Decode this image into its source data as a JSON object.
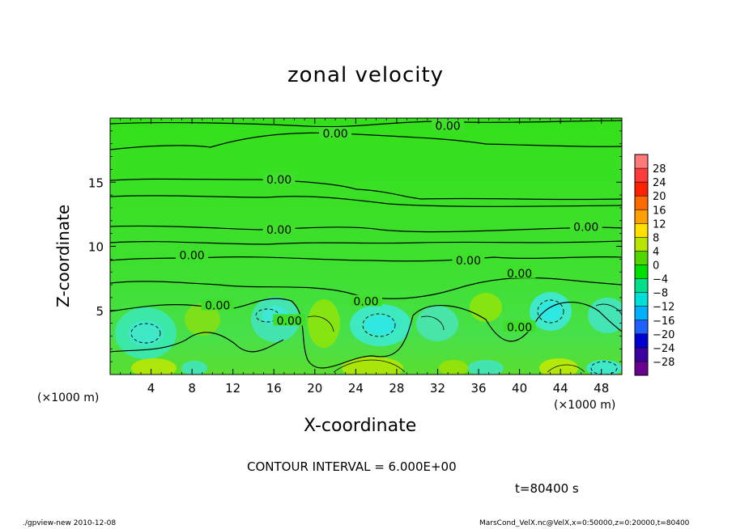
{
  "chart_data": {
    "type": "heatmap",
    "title": "zonal velocity",
    "xlabel": "X-coordinate",
    "ylabel": "Z-coordinate",
    "x_unit_label": "(×1000 m)",
    "x_ticks": [
      4,
      8,
      12,
      16,
      20,
      24,
      28,
      32,
      36,
      40,
      44,
      48
    ],
    "y_ticks": [
      5,
      10,
      15
    ],
    "xlim": [
      0,
      50
    ],
    "ylim": [
      0,
      20
    ],
    "contour_labels": [
      {
        "text": "0.00",
        "x": 33,
        "y": 19.4
      },
      {
        "text": "0.00",
        "x": 22,
        "y": 18.8
      },
      {
        "text": "0.00",
        "x": 16.5,
        "y": 15.2
      },
      {
        "text": "0.00",
        "x": 16.5,
        "y": 11.3
      },
      {
        "text": "0.00",
        "x": 46.5,
        "y": 11.5
      },
      {
        "text": "0.00",
        "x": 8,
        "y": 9.3
      },
      {
        "text": "0.00",
        "x": 35,
        "y": 8.9
      },
      {
        "text": "0.00",
        "x": 40,
        "y": 7.9
      },
      {
        "text": "0.00",
        "x": 25,
        "y": 5.7
      },
      {
        "text": "0.00",
        "x": 10.5,
        "y": 5.4
      },
      {
        "text": "0.00",
        "x": 17.5,
        "y": 4.2
      },
      {
        "text": "0.00",
        "x": 40,
        "y": 3.7
      }
    ],
    "colorbar": {
      "labels": [
        "28",
        "24",
        "20",
        "16",
        "12",
        "8",
        "4",
        "0",
        "−4",
        "−8",
        "−12",
        "−16",
        "−20",
        "−24",
        "−28"
      ],
      "colors": [
        "#ff7a7a",
        "#ff3b3b",
        "#ff2200",
        "#ff6a00",
        "#ffa000",
        "#ffe000",
        "#b8e600",
        "#52d600",
        "#00e000",
        "#00e08a",
        "#00e0d8",
        "#00b0ff",
        "#2060ff",
        "#0000d0",
        "#3a00a0",
        "#6a0090"
      ]
    },
    "contour_interval_text": "CONTOUR INTERVAL = 6.000E+00",
    "time_text": "t=80400 s"
  },
  "footer": {
    "left": "./gpview-new  2010-12-08",
    "right": "MarsCond_VelX.nc@VelX,x=0:50000,z=0:20000,t=80400"
  }
}
